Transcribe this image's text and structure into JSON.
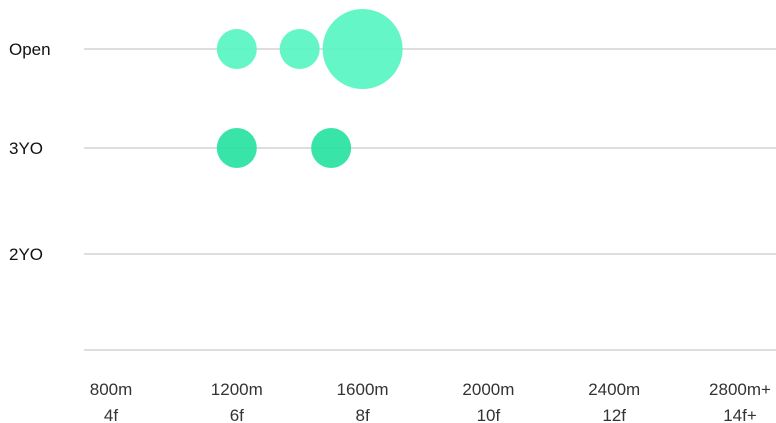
{
  "chart_data": {
    "type": "scatter",
    "title": "",
    "xlabel": "",
    "ylabel": "",
    "xlim": [
      800,
      2900
    ],
    "categories": [
      "Open",
      "3YO",
      "2YO"
    ],
    "x_ticks": [
      {
        "value": 800,
        "meters": "800m",
        "furlongs": "4f"
      },
      {
        "value": 1200,
        "meters": "1200m",
        "furlongs": "6f"
      },
      {
        "value": 1600,
        "meters": "1600m",
        "furlongs": "8f"
      },
      {
        "value": 2000,
        "meters": "2000m",
        "furlongs": "10f"
      },
      {
        "value": 2400,
        "meters": "2400m",
        "furlongs": "12f"
      },
      {
        "value": 2800,
        "meters": "2800m+",
        "furlongs": "14f+"
      }
    ],
    "grid": "horizontal",
    "series": [
      {
        "category": "Open",
        "color": "#5cf5c3",
        "points": [
          {
            "x": 1200,
            "size": 1
          },
          {
            "x": 1400,
            "size": 1
          },
          {
            "x": 1600,
            "size": 4
          }
        ]
      },
      {
        "category": "3YO",
        "color": "#2de3a2",
        "points": [
          {
            "x": 1200,
            "size": 1
          },
          {
            "x": 1500,
            "size": 1
          }
        ]
      },
      {
        "category": "2YO",
        "color": "#5cf5c3",
        "points": []
      }
    ]
  }
}
